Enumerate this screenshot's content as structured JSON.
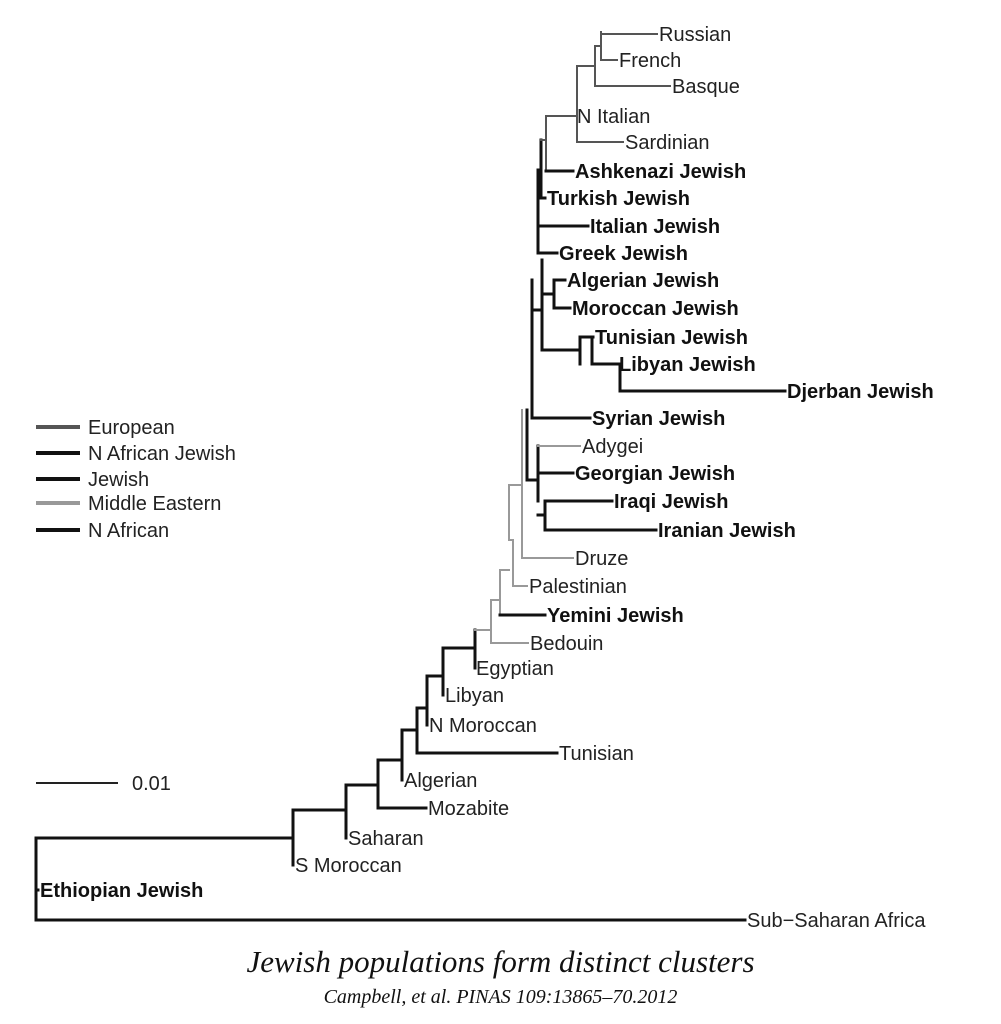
{
  "leaves": [
    {
      "id": "russian",
      "label": "Russian",
      "bold": false
    },
    {
      "id": "french",
      "label": "French",
      "bold": false
    },
    {
      "id": "basque",
      "label": "Basque",
      "bold": false
    },
    {
      "id": "n-italian",
      "label": "N Italian",
      "bold": false
    },
    {
      "id": "sardinian",
      "label": "Sardinian",
      "bold": false
    },
    {
      "id": "ashkenazi-jewish",
      "label": "Ashkenazi Jewish",
      "bold": true
    },
    {
      "id": "turkish-jewish",
      "label": "Turkish Jewish",
      "bold": true
    },
    {
      "id": "italian-jewish",
      "label": "Italian Jewish",
      "bold": true
    },
    {
      "id": "greek-jewish",
      "label": "Greek Jewish",
      "bold": true
    },
    {
      "id": "algerian-jewish",
      "label": "Algerian Jewish",
      "bold": true
    },
    {
      "id": "moroccan-jewish",
      "label": "Moroccan Jewish",
      "bold": true
    },
    {
      "id": "tunisian-jewish",
      "label": "Tunisian Jewish",
      "bold": true
    },
    {
      "id": "libyan-jewish",
      "label": "Libyan Jewish",
      "bold": true
    },
    {
      "id": "djerban-jewish",
      "label": "Djerban Jewish",
      "bold": true
    },
    {
      "id": "syrian-jewish",
      "label": "Syrian Jewish",
      "bold": true
    },
    {
      "id": "adygei",
      "label": "Adygei",
      "bold": false
    },
    {
      "id": "georgian-jewish",
      "label": "Georgian Jewish",
      "bold": true
    },
    {
      "id": "iraqi-jewish",
      "label": "Iraqi Jewish",
      "bold": true
    },
    {
      "id": "iranian-jewish",
      "label": "Iranian Jewish",
      "bold": true
    },
    {
      "id": "druze",
      "label": "Druze",
      "bold": false
    },
    {
      "id": "palestinian",
      "label": "Palestinian",
      "bold": false
    },
    {
      "id": "yemini-jewish",
      "label": "Yemini Jewish",
      "bold": true
    },
    {
      "id": "bedouin",
      "label": "Bedouin",
      "bold": false
    },
    {
      "id": "egyptian",
      "label": "Egyptian",
      "bold": false
    },
    {
      "id": "libyan",
      "label": "Libyan",
      "bold": false
    },
    {
      "id": "n-moroccan",
      "label": "N Moroccan",
      "bold": false
    },
    {
      "id": "tunisian",
      "label": "Tunisian",
      "bold": false
    },
    {
      "id": "algerian",
      "label": "Algerian",
      "bold": false
    },
    {
      "id": "mozabite",
      "label": "Mozabite",
      "bold": false
    },
    {
      "id": "saharan",
      "label": "Saharan",
      "bold": false
    },
    {
      "id": "s-moroccan",
      "label": "S Moroccan",
      "bold": false
    },
    {
      "id": "ethiopian-jewish",
      "label": "Ethiopian Jewish",
      "bold": true
    },
    {
      "id": "sub-saharan-africa",
      "label": "Sub−Saharan Africa",
      "bold": false
    }
  ],
  "legend": [
    {
      "label": "European",
      "color": "#555555"
    },
    {
      "label": "N African Jewish",
      "color": "#111111"
    },
    {
      "label": "Jewish",
      "color": "#111111"
    },
    {
      "label": "Middle Eastern",
      "color": "#999999"
    },
    {
      "label": "N African",
      "color": "#111111"
    }
  ],
  "scale_bar": {
    "label": "0.01"
  },
  "caption": {
    "title": "Jewish populations form distinct clusters",
    "citation": "Campbell, et al. PINAS 109:13865–70.2012"
  }
}
